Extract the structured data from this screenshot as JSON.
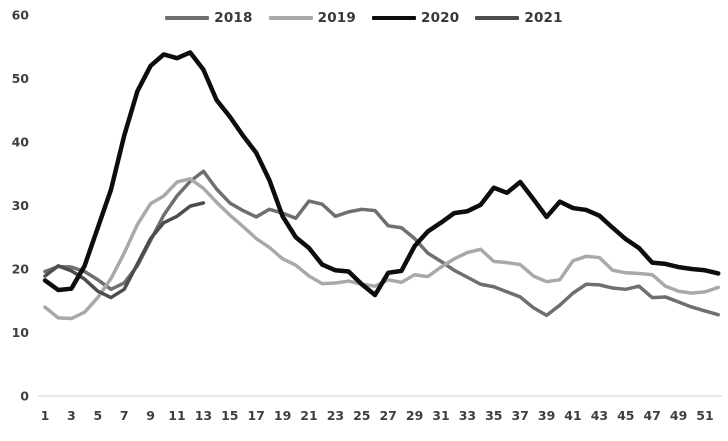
{
  "chart_data": {
    "type": "line",
    "title": "",
    "xlabel": "",
    "ylabel": "",
    "x_range": [
      1,
      52
    ],
    "x_ticks_shown": [
      1,
      3,
      5,
      7,
      9,
      11,
      13,
      15,
      17,
      19,
      21,
      23,
      25,
      27,
      29,
      31,
      33,
      35,
      37,
      39,
      41,
      43,
      45,
      47,
      49,
      51
    ],
    "y_ticks": [
      0,
      10,
      20,
      30,
      40,
      50,
      60
    ],
    "ylim": [
      0,
      60
    ],
    "grid": false,
    "legend_position": "top-center",
    "axis_line_color": "#d9d9d9",
    "tick_label_color": "#3f3f3f",
    "series": [
      {
        "name": "2018",
        "color": "#6f6f6f",
        "line_width": 3.5,
        "values": [
          19.6,
          20.4,
          20.3,
          19.6,
          18.3,
          16.8,
          17.8,
          20.5,
          24.5,
          28.5,
          31.5,
          33.8,
          35.4,
          32.6,
          30.4,
          29.2,
          28.2,
          29.4,
          28.8,
          28.0,
          30.7,
          30.2,
          28.3,
          29.0,
          29.4,
          29.2,
          26.8,
          26.5,
          24.8,
          22.5,
          21.2,
          19.8,
          18.7,
          17.6,
          17.2,
          16.4,
          15.6,
          13.9,
          12.7,
          14.3,
          16.2,
          17.6,
          17.5,
          17.0,
          16.8,
          17.3,
          15.5,
          15.6,
          14.8,
          14.0,
          13.4,
          12.8
        ]
      },
      {
        "name": "2019",
        "color": "#a9a9a9",
        "line_width": 3.5,
        "values": [
          14.0,
          12.3,
          12.2,
          13.2,
          15.5,
          18.5,
          22.5,
          27.0,
          30.3,
          31.5,
          33.7,
          34.2,
          32.7,
          30.5,
          28.5,
          26.7,
          24.8,
          23.4,
          21.6,
          20.6,
          18.9,
          17.7,
          17.8,
          18.1,
          17.6,
          17.3,
          18.3,
          17.9,
          19.1,
          18.8,
          20.3,
          21.6,
          22.6,
          23.1,
          21.2,
          21.0,
          20.7,
          18.9,
          18.0,
          18.3,
          21.3,
          22.0,
          21.8,
          19.8,
          19.4,
          19.3,
          19.1,
          17.3,
          16.5,
          16.2,
          16.4,
          17.1
        ]
      },
      {
        "name": "2020",
        "color": "#0d0d0d",
        "line_width": 4.5,
        "values": [
          18.2,
          16.7,
          16.9,
          20.5,
          26.5,
          32.5,
          41.0,
          48.0,
          52.0,
          53.8,
          53.2,
          54.1,
          51.4,
          46.6,
          44.0,
          41.0,
          38.3,
          34.0,
          28.3,
          25.0,
          23.3,
          20.7,
          19.8,
          19.6,
          17.6,
          15.9,
          19.4,
          19.7,
          23.6,
          25.9,
          27.3,
          28.8,
          29.1,
          30.1,
          32.8,
          32.0,
          33.7,
          31.0,
          28.2,
          30.6,
          29.6,
          29.3,
          28.4,
          26.5,
          24.7,
          23.3,
          21.0,
          20.8,
          20.3,
          20.0,
          19.8,
          19.3
        ]
      },
      {
        "name": "2021",
        "color": "#4d4d4d",
        "line_width": 3.5,
        "values": [
          18.9,
          20.5,
          19.7,
          18.4,
          16.5,
          15.5,
          16.8,
          20.8,
          24.8,
          27.3,
          28.3,
          29.9,
          30.4
        ]
      }
    ]
  }
}
